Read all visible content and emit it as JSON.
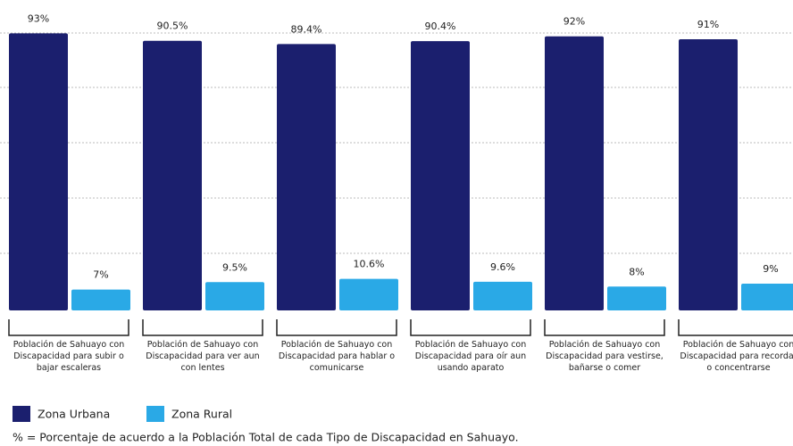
{
  "chart_data": {
    "type": "bar",
    "categories": [
      "Población de Sahuayo con Discapacidad para subir o bajar escaleras",
      "Población de Sahuayo con Discapacidad para ver aun con lentes",
      "Población de Sahuayo con Discapacidad para hablar o comunicarse",
      "Población de Sahuayo con Discapacidad para oír aun usando aparato",
      "Población de Sahuayo con Discapacidad para vestirse, bañarse o comer",
      "Población de Sahuayo con Discapacidad para recordar o concentrarse"
    ],
    "series": [
      {
        "name": "Zona Urbana",
        "color": "#1b1f6e",
        "values": [
          93,
          90.5,
          89.4,
          90.4,
          92,
          91
        ],
        "value_labels": [
          "93%",
          "90.5%",
          "89.4%",
          "90.4%",
          "92%",
          "91%"
        ]
      },
      {
        "name": "Zona Rural",
        "color": "#2aa9e6",
        "values": [
          7,
          9.5,
          10.6,
          9.6,
          8,
          9
        ],
        "value_labels": [
          "7%",
          "9.5%",
          "10.6%",
          "9.6%",
          "8%",
          "9%"
        ]
      }
    ],
    "ylim": [
      0,
      100
    ],
    "note": "% = Porcentaje de acuerdo a la Población Total de cada Tipo de Discapacidad en Sahuayo."
  }
}
